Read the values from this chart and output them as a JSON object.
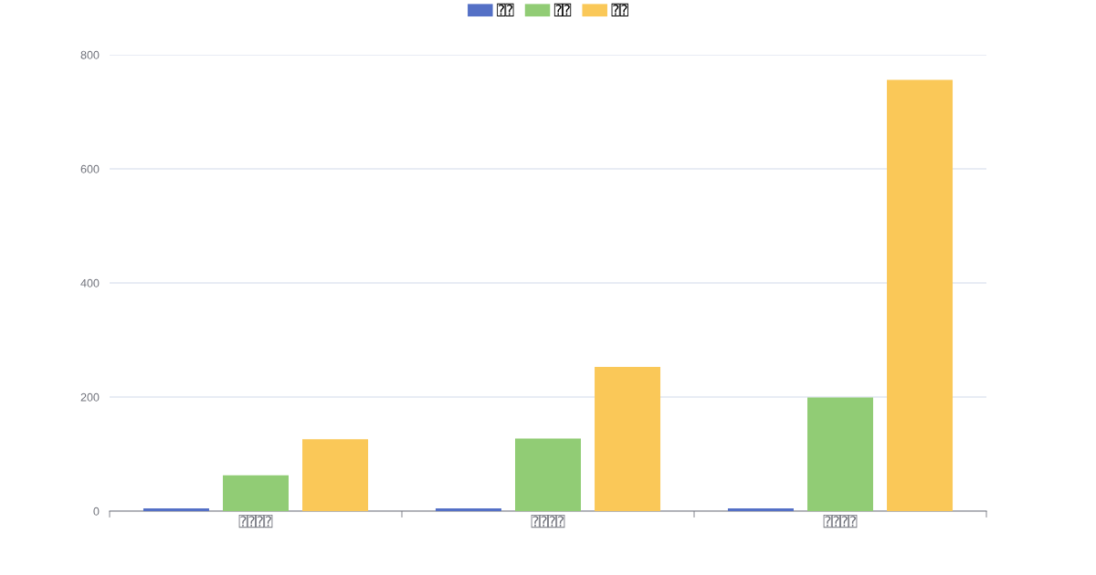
{
  "chart_data": {
    "type": "bar",
    "categories": [
      "⍰⍰⍰⍰",
      "⍰⍰⍰⍰",
      "⍰⍰⍰⍰"
    ],
    "series": [
      {
        "name": "⍰⍰",
        "color": "#5470c6",
        "values": [
          5,
          5,
          5
        ]
      },
      {
        "name": "⍰⍰",
        "color": "#91cc75",
        "values": [
          63,
          127,
          199
        ]
      },
      {
        "name": "⍰⍰",
        "color": "#fac858",
        "values": [
          126,
          253,
          756
        ]
      }
    ],
    "ylim": [
      0,
      800
    ],
    "yticks": [
      0,
      200,
      400,
      600,
      800
    ],
    "grid": "y",
    "legend": "top"
  }
}
